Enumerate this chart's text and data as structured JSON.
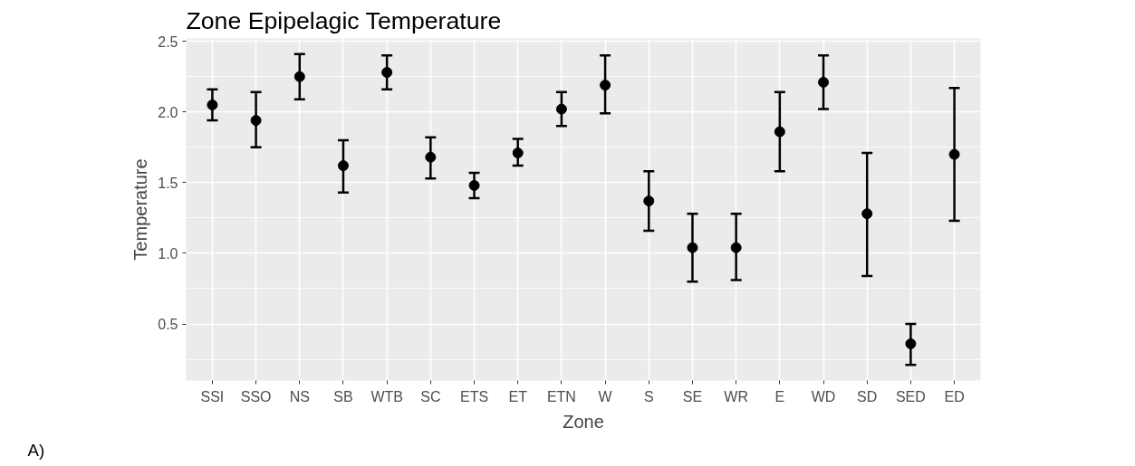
{
  "chart_data": {
    "type": "scatter",
    "title": "Zone Epipelagic Temperature",
    "xlabel": "Zone",
    "ylabel": "Temperature",
    "categories": [
      "SSI",
      "SSO",
      "NS",
      "SB",
      "WTB",
      "SC",
      "ETS",
      "ET",
      "ETN",
      "W",
      "S",
      "SE",
      "WR",
      "E",
      "WD",
      "SD",
      "SED",
      "ED"
    ],
    "values": [
      2.05,
      1.94,
      2.25,
      1.62,
      2.28,
      1.68,
      1.48,
      1.71,
      2.02,
      2.19,
      1.37,
      1.04,
      1.04,
      1.86,
      2.21,
      1.28,
      0.36,
      1.7
    ],
    "errors": [
      [
        1.94,
        2.16
      ],
      [
        1.75,
        2.14
      ],
      [
        2.09,
        2.41
      ],
      [
        1.43,
        1.8
      ],
      [
        2.16,
        2.4
      ],
      [
        1.53,
        1.82
      ],
      [
        1.39,
        1.57
      ],
      [
        1.62,
        1.81
      ],
      [
        1.9,
        2.14
      ],
      [
        1.99,
        2.4
      ],
      [
        1.16,
        1.58
      ],
      [
        0.8,
        1.28
      ],
      [
        0.81,
        1.28
      ],
      [
        1.58,
        2.14
      ],
      [
        2.02,
        2.4
      ],
      [
        0.84,
        1.71
      ],
      [
        0.21,
        0.5
      ],
      [
        1.23,
        2.17
      ]
    ],
    "color": "#000000",
    "marker": "circle",
    "grid": true,
    "ylim": [
      0.1,
      2.52
    ],
    "yticks": [
      {
        "value": 0.5,
        "label": "0.5"
      },
      {
        "value": 1,
        "label": "1.0"
      },
      {
        "value": 1.5,
        "label": "1.5"
      },
      {
        "value": 2,
        "label": "2.0"
      },
      {
        "value": 2.5,
        "label": "2.5"
      }
    ],
    "annotations": [
      "A)"
    ]
  }
}
